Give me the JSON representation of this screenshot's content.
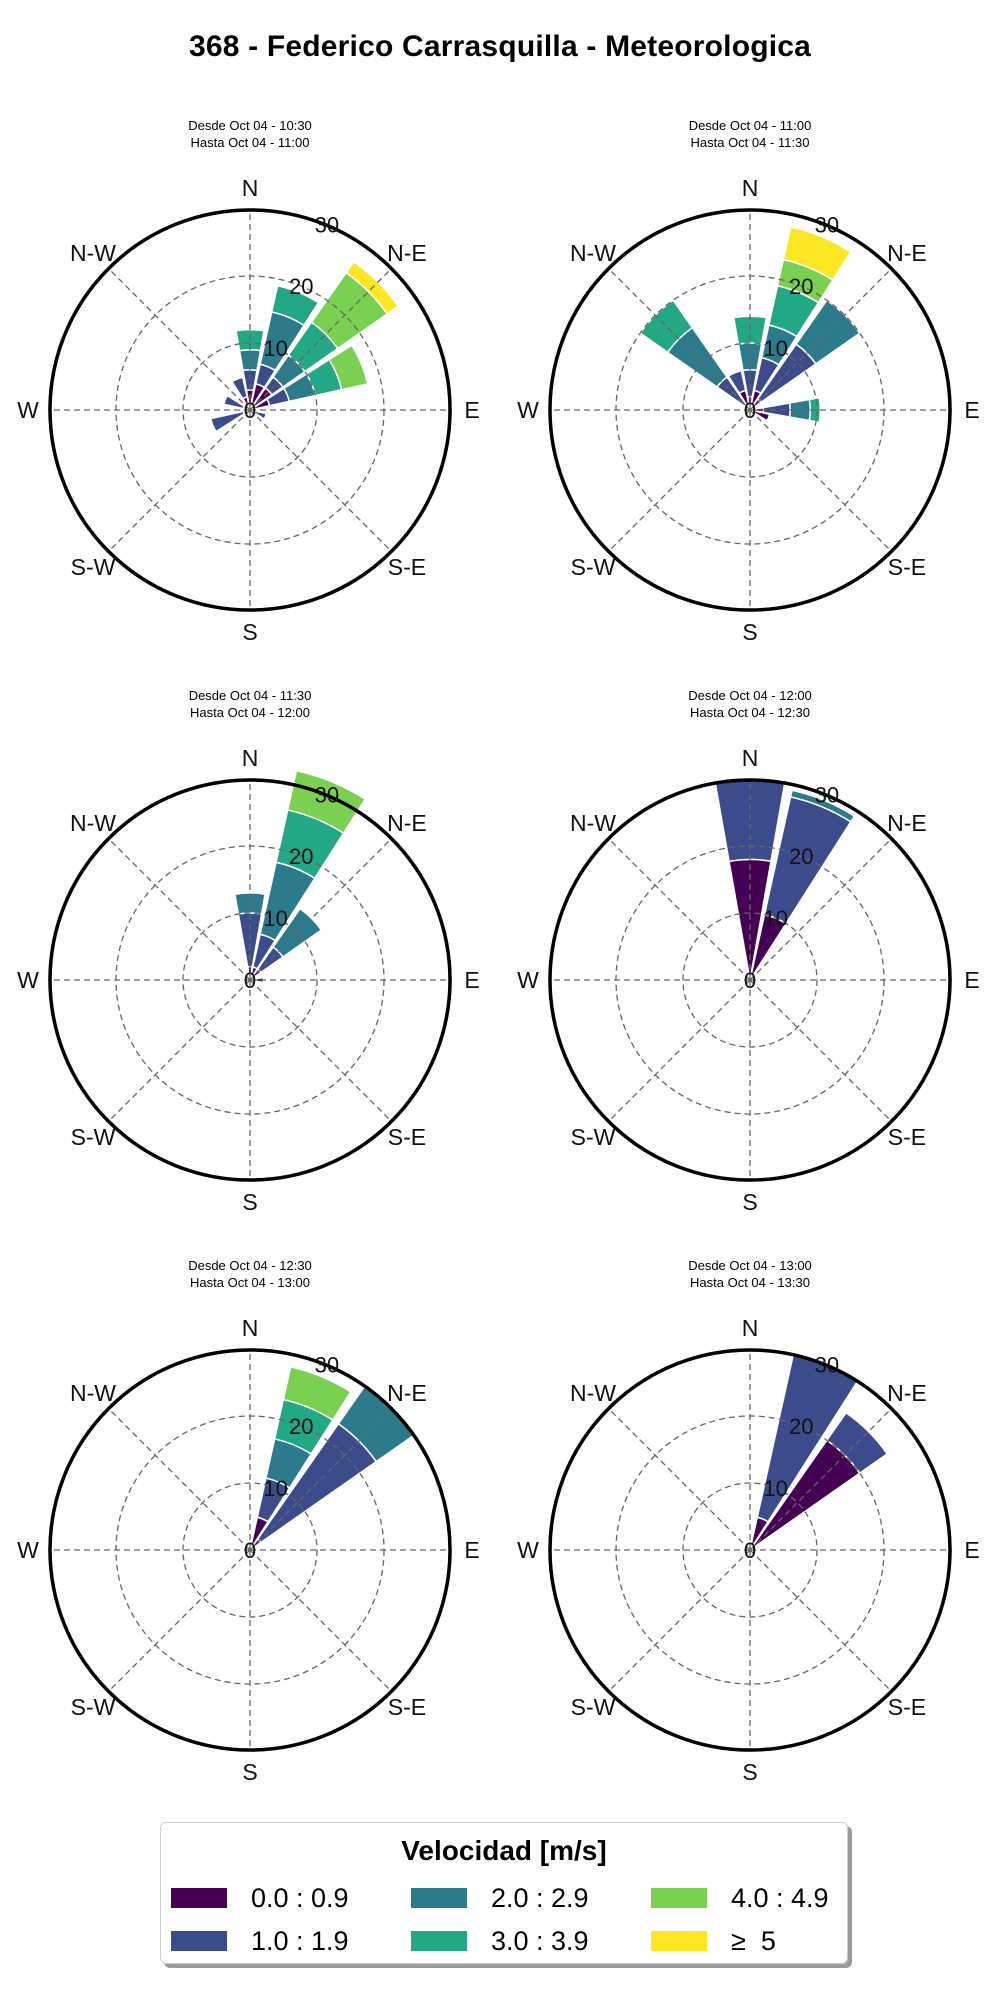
{
  "title": "368 - Federico Carrasquilla - Meteorologica",
  "legend": {
    "title": "Velocidad [m/s]",
    "items": [
      {
        "label": "0.0 : 0.9",
        "color": "#440154"
      },
      {
        "label": "1.0 : 1.9",
        "color": "#3b4b8c"
      },
      {
        "label": "2.0 : 2.9",
        "color": "#2c7b8d"
      },
      {
        "label": "3.0 : 3.9",
        "color": "#22a884"
      },
      {
        "label": "4.0 : 4.9",
        "color": "#7ad151"
      },
      {
        "label": "≥  5",
        "color": "#fde725"
      }
    ]
  },
  "directions": [
    "N",
    "N-E",
    "E",
    "S-E",
    "S",
    "S-W",
    "W",
    "N-W"
  ],
  "radial_ticks": [
    "0",
    "10",
    "20",
    "30"
  ],
  "chart_data": [
    {
      "type": "windrose",
      "title_line1": "Desde Oct 04 - 10:30",
      "title_line2": "Hasta Oct 04 - 11:00",
      "rmax": 30,
      "bins": [
        {
          "dir": 0,
          "stack": [
            3,
            3,
            3,
            3
          ]
        },
        {
          "dir": 22.5,
          "stack": [
            4,
            3,
            8,
            4
          ]
        },
        {
          "dir": 45,
          "stack": [
            4,
            2,
            4,
            6,
            9,
            2
          ]
        },
        {
          "dir": 67.5,
          "stack": [
            3,
            3,
            4,
            4,
            4
          ]
        },
        {
          "dir": 112.5,
          "stack": [
            0.5,
            2
          ]
        },
        {
          "dir": 157.5,
          "stack": [
            0.8
          ]
        },
        {
          "dir": 247.5,
          "stack": [
            1,
            5
          ]
        },
        {
          "dir": 292.5,
          "stack": [
            1,
            3
          ]
        },
        {
          "dir": 337.5,
          "stack": [
            2,
            3
          ]
        }
      ]
    },
    {
      "type": "windrose",
      "title_line1": "Desde Oct 04 - 11:00",
      "title_line2": "Hasta Oct 04 - 11:30",
      "rmax": 30,
      "bins": [
        {
          "dir": 0,
          "stack": [
            2,
            4,
            4,
            4
          ]
        },
        {
          "dir": 22.5,
          "stack": [
            3,
            5,
            5,
            6,
            4,
            5
          ]
        },
        {
          "dir": 45,
          "stack": [
            2,
            10,
            8
          ]
        },
        {
          "dir": 90,
          "stack": [
            2,
            4,
            3,
            1.5
          ]
        },
        {
          "dir": 112.5,
          "stack": [
            3
          ]
        },
        {
          "dir": 315,
          "stack": [
            1,
            5,
            9,
            5
          ]
        },
        {
          "dir": 337.5,
          "stack": [
            3,
            3
          ]
        }
      ]
    },
    {
      "type": "windrose",
      "title_line1": "Desde Oct 04 - 11:30",
      "title_line2": "Hasta Oct 04 - 12:00",
      "rmax": 30,
      "bins": [
        {
          "dir": 0,
          "stack": [
            2,
            8,
            3
          ]
        },
        {
          "dir": 22.5,
          "stack": [
            2,
            5,
            11,
            8,
            6
          ]
        },
        {
          "dir": 45,
          "stack": [
            2,
            4,
            7
          ]
        },
        {
          "dir": 90,
          "stack": [
            2
          ]
        }
      ]
    },
    {
      "type": "windrose",
      "title_line1": "Desde Oct 04 - 12:00",
      "title_line2": "Hasta Oct 04 - 12:30",
      "rmax": 30,
      "bins": [
        {
          "dir": 0,
          "stack": [
            18,
            12
          ]
        },
        {
          "dir": 22.5,
          "stack": [
            10,
            18,
            1
          ]
        }
      ]
    },
    {
      "type": "windrose",
      "title_line1": "Desde Oct 04 - 12:30",
      "title_line2": "Hasta Oct 04 - 13:00",
      "rmax": 30,
      "bins": [
        {
          "dir": 22.5,
          "stack": [
            5,
            6,
            6,
            6,
            5
          ]
        },
        {
          "dir": 45,
          "stack": [
            2,
            21,
            7
          ]
        }
      ]
    },
    {
      "type": "windrose",
      "title_line1": "Desde Oct 04 - 13:00",
      "title_line2": "Hasta Oct 04 - 13:30",
      "rmax": 30,
      "bins": [
        {
          "dir": 22.5,
          "stack": [
            5,
            25
          ]
        },
        {
          "dir": 45,
          "stack": [
            20,
            5
          ]
        }
      ]
    }
  ]
}
